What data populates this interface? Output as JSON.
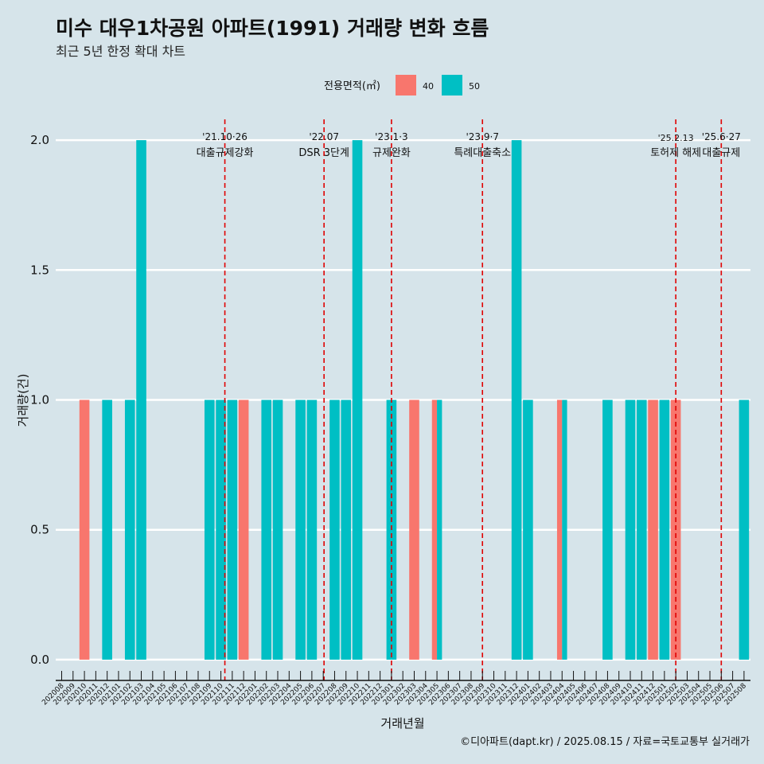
{
  "title": "미수 대우1차공원 아파트(1991) 거래량 변화 흐름",
  "subtitle": "최근 5년 한정 확대 차트",
  "legend": {
    "title": "전용면적(㎡)",
    "placement": "top-center",
    "items": [
      {
        "label": "40",
        "color": "#f8766d"
      },
      {
        "label": "50",
        "color": "#00bfc4"
      }
    ]
  },
  "caption": "©디아파트(dapt.kr) / 2025.08.15 / 자료=국토교통부 실거래가",
  "chart_data": {
    "type": "bar",
    "stacking": "dodge",
    "xlabel": "거래년월",
    "ylabel": "거래량(건)",
    "ylim": [
      -0.08,
      2.08
    ],
    "yticks": [
      "0.0",
      "0.5",
      "1.0",
      "1.5",
      "2.0"
    ],
    "grid": true,
    "categories": [
      "202008",
      "202009",
      "202010",
      "202011",
      "202012",
      "202101",
      "202102",
      "202103",
      "202104",
      "202105",
      "202106",
      "202107",
      "202108",
      "202109",
      "202110",
      "202111",
      "202112",
      "202201",
      "202202",
      "202203",
      "202204",
      "202205",
      "202206",
      "202207",
      "202208",
      "202209",
      "202210",
      "202211",
      "202212",
      "202301",
      "202302",
      "202303",
      "202304",
      "202305",
      "202306",
      "202307",
      "202308",
      "202309",
      "202310",
      "202311",
      "202312",
      "202401",
      "202402",
      "202403",
      "202404",
      "202405",
      "202406",
      "202407",
      "202408",
      "202409",
      "202410",
      "202411",
      "202412",
      "202501",
      "202502",
      "202503",
      "202504",
      "202505",
      "202506",
      "202507",
      "202508"
    ],
    "bars": [
      {
        "month": "202010",
        "area": "40",
        "value": 1
      },
      {
        "month": "202012",
        "area": "50",
        "value": 1
      },
      {
        "month": "202102",
        "area": "50",
        "value": 1
      },
      {
        "month": "202103",
        "area": "50",
        "value": 2
      },
      {
        "month": "202109",
        "area": "50",
        "value": 1
      },
      {
        "month": "202110",
        "area": "50",
        "value": 1
      },
      {
        "month": "202111",
        "area": "50",
        "value": 1
      },
      {
        "month": "202112",
        "area": "40",
        "value": 1
      },
      {
        "month": "202202",
        "area": "50",
        "value": 1
      },
      {
        "month": "202203",
        "area": "50",
        "value": 1
      },
      {
        "month": "202205",
        "area": "50",
        "value": 1
      },
      {
        "month": "202206",
        "area": "50",
        "value": 1
      },
      {
        "month": "202208",
        "area": "50",
        "value": 1
      },
      {
        "month": "202209",
        "area": "50",
        "value": 1
      },
      {
        "month": "202210",
        "area": "50",
        "value": 2
      },
      {
        "month": "202301",
        "area": "50",
        "value": 1
      },
      {
        "month": "202303",
        "area": "40",
        "value": 1
      },
      {
        "month": "202305",
        "area": "40",
        "value": 1
      },
      {
        "month": "202305",
        "area": "50",
        "value": 1
      },
      {
        "month": "202312",
        "area": "50",
        "value": 2
      },
      {
        "month": "202401",
        "area": "50",
        "value": 1
      },
      {
        "month": "202404",
        "area": "40",
        "value": 1
      },
      {
        "month": "202404",
        "area": "50",
        "value": 1
      },
      {
        "month": "202408",
        "area": "50",
        "value": 1
      },
      {
        "month": "202410",
        "area": "50",
        "value": 1
      },
      {
        "month": "202411",
        "area": "50",
        "value": 1
      },
      {
        "month": "202412",
        "area": "40",
        "value": 1
      },
      {
        "month": "202501",
        "area": "50",
        "value": 1
      },
      {
        "month": "202502",
        "area": "40",
        "value": 1
      },
      {
        "month": "202508",
        "area": "50",
        "value": 1
      }
    ],
    "annotations": [
      {
        "month": "202110",
        "date": "'21.10·26",
        "label": "대출규제강화"
      },
      {
        "month": "202207",
        "date": "'22.07",
        "label": "DSR 3단계"
      },
      {
        "month": "202301",
        "date": "'23.1·3",
        "label": "규제완화"
      },
      {
        "month": "202309",
        "date": "'23.9·7",
        "label": "특례대출축소"
      },
      {
        "month": "202502",
        "date": "'25.2.13",
        "label": "토허제 해제"
      },
      {
        "month": "202506",
        "date": "'25.6·27",
        "label": "대출규제"
      }
    ],
    "annotation_line_color": "#e00000"
  }
}
